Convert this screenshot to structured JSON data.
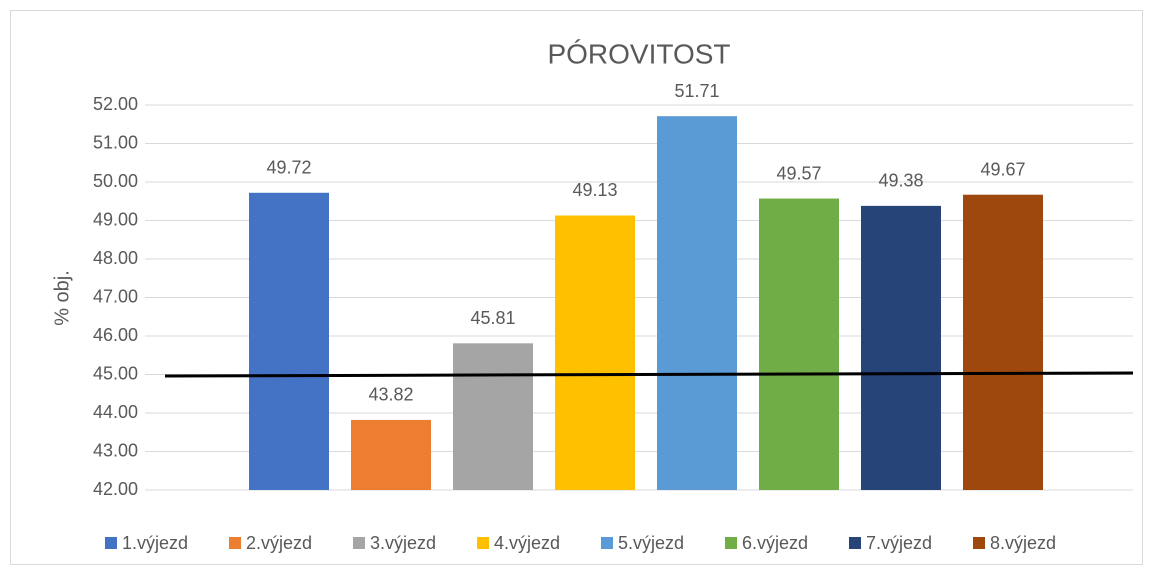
{
  "chart_data": {
    "type": "bar",
    "title": "PÓROVITOST",
    "ylabel": "% obj.",
    "categories": [
      null
    ],
    "series": [
      {
        "name": "1.výjezd",
        "color": "#4472c4",
        "values": [
          49.72
        ]
      },
      {
        "name": "2.výjezd",
        "color": "#ed7d31",
        "values": [
          43.82
        ]
      },
      {
        "name": "3.výjezd",
        "color": "#a5a5a5",
        "values": [
          45.81
        ]
      },
      {
        "name": "4.výjezd",
        "color": "#ffc000",
        "values": [
          49.13
        ]
      },
      {
        "name": "5.výjezd",
        "color": "#5b9bd5",
        "values": [
          51.71
        ]
      },
      {
        "name": "6.výjezd",
        "color": "#70ad47",
        "values": [
          49.57
        ]
      },
      {
        "name": "7.výjezd",
        "color": "#264478",
        "values": [
          49.38
        ]
      },
      {
        "name": "8.výjezd",
        "color": "#9e480e",
        "values": [
          49.67
        ]
      }
    ],
    "reference_line": 45,
    "ylim": [
      42,
      52
    ],
    "yticks": [
      {
        "value": 42,
        "label": "42.00"
      },
      {
        "value": 43,
        "label": "43.00"
      },
      {
        "value": 44,
        "label": "44.00"
      },
      {
        "value": 45,
        "label": "45.00"
      },
      {
        "value": 46,
        "label": "46.00"
      },
      {
        "value": 47,
        "label": "47.00"
      },
      {
        "value": 48,
        "label": "48.00"
      },
      {
        "value": 49,
        "label": "49.00"
      },
      {
        "value": 50,
        "label": "50.00"
      },
      {
        "value": 51,
        "label": "51.00"
      },
      {
        "value": 52,
        "label": "52.00"
      }
    ],
    "grid": true,
    "legend": "bottom"
  }
}
